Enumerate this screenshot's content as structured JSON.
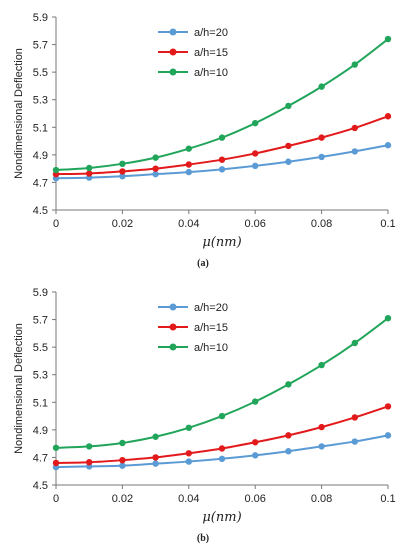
{
  "chart_data": [
    {
      "type": "line",
      "panel": "a",
      "caption": "(a)",
      "xlabel": "μ(nm)",
      "ylabel": "Nondimensional Deflection",
      "xlim": [
        0,
        0.1
      ],
      "ylim": [
        4.5,
        5.9
      ],
      "xticks": [
        "0",
        "0.02",
        "0.04",
        "0.06",
        "0.08",
        "0.1"
      ],
      "yticks": [
        "4.5",
        "4.7",
        "4.9",
        "5.1",
        "5.3",
        "5.5",
        "5.7",
        "5.9"
      ],
      "legend_position": "top-center",
      "x": [
        0,
        0.01,
        0.02,
        0.03,
        0.04,
        0.05,
        0.06,
        0.07,
        0.08,
        0.09,
        0.1
      ],
      "series": [
        {
          "name": "a/h=20",
          "color": "#5b9bd5",
          "values": [
            4.73,
            4.735,
            4.745,
            4.76,
            4.775,
            4.795,
            4.82,
            4.85,
            4.885,
            4.925,
            4.97
          ]
        },
        {
          "name": "a/h=15",
          "color": "#e31a1c",
          "values": [
            4.76,
            4.765,
            4.78,
            4.8,
            4.83,
            4.865,
            4.91,
            4.965,
            5.025,
            5.095,
            5.18
          ]
        },
        {
          "name": "a/h=10",
          "color": "#21a55a",
          "values": [
            4.79,
            4.805,
            4.835,
            4.88,
            4.945,
            5.025,
            5.13,
            5.255,
            5.395,
            5.555,
            5.74
          ]
        }
      ]
    },
    {
      "type": "line",
      "panel": "b",
      "caption": "(b)",
      "xlabel": "μ(nm)",
      "ylabel": "Nondimensional Deflection",
      "xlim": [
        0,
        0.1
      ],
      "ylim": [
        4.5,
        5.9
      ],
      "xticks": [
        "0",
        "0.02",
        "0.04",
        "0.06",
        "0.08",
        "0.1"
      ],
      "yticks": [
        "4.5",
        "4.7",
        "4.9",
        "5.1",
        "5.3",
        "5.5",
        "5.7",
        "5.9"
      ],
      "legend_position": "top-center",
      "x": [
        0,
        0.01,
        0.02,
        0.03,
        0.04,
        0.05,
        0.06,
        0.07,
        0.08,
        0.09,
        0.1
      ],
      "series": [
        {
          "name": "a/h=20",
          "color": "#5b9bd5",
          "values": [
            4.63,
            4.635,
            4.64,
            4.655,
            4.67,
            4.69,
            4.715,
            4.745,
            4.78,
            4.815,
            4.86
          ]
        },
        {
          "name": "a/h=15",
          "color": "#e31a1c",
          "values": [
            4.66,
            4.665,
            4.68,
            4.7,
            4.73,
            4.765,
            4.81,
            4.86,
            4.92,
            4.99,
            5.07
          ]
        },
        {
          "name": "a/h=10",
          "color": "#21a55a",
          "values": [
            4.77,
            4.78,
            4.805,
            4.85,
            4.915,
            5.0,
            5.105,
            5.23,
            5.37,
            5.53,
            5.71
          ]
        }
      ]
    }
  ]
}
